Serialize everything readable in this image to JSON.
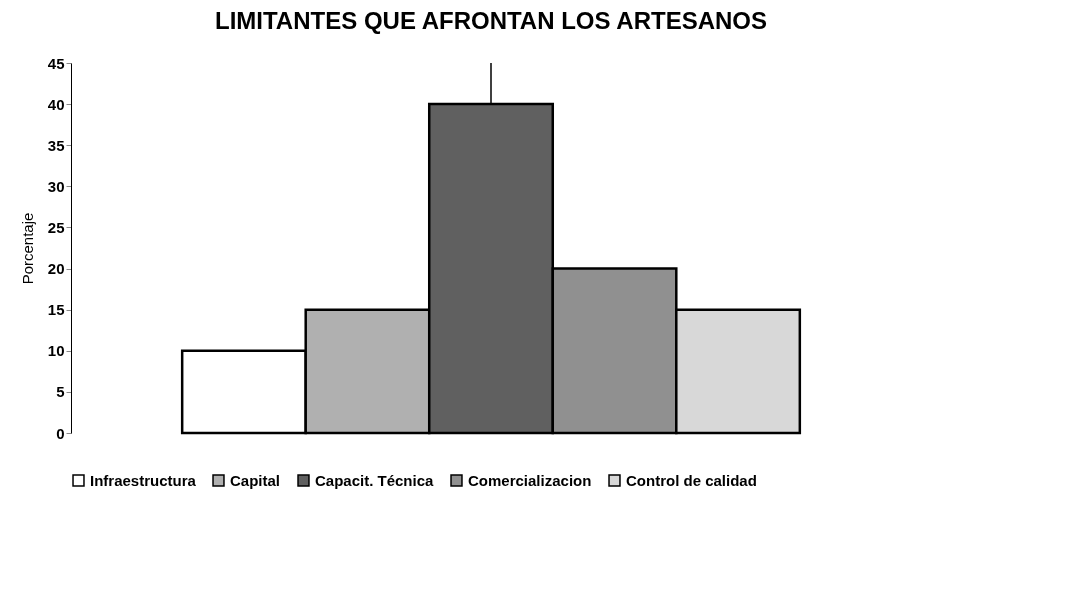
{
  "chart_data": {
    "type": "bar",
    "title": "LIMITANTES QUE AFRONTAN LOS ARTESANOS",
    "ylabel": "Porcentaje",
    "categories": [
      null
    ],
    "series": [
      {
        "name": "Infraestructura",
        "color": "#ffffff",
        "values": [
          10
        ]
      },
      {
        "name": "Capital",
        "color": "#b0b0b0",
        "values": [
          15
        ]
      },
      {
        "name": "Capacit. Técnica",
        "color": "#606060",
        "values": [
          40
        ],
        "errors": [
          [
            40,
            45
          ]
        ]
      },
      {
        "name": "Comercializacion",
        "color": "#909090",
        "values": [
          20
        ]
      },
      {
        "name": "Control de calidad",
        "color": "#d8d8d8",
        "values": [
          15
        ]
      }
    ],
    "ylim": [
      0,
      45
    ],
    "yticks": [
      0,
      5,
      10,
      15,
      20,
      25,
      30,
      35,
      40,
      45
    ],
    "tick_labels": "y",
    "legend": "bottom"
  }
}
